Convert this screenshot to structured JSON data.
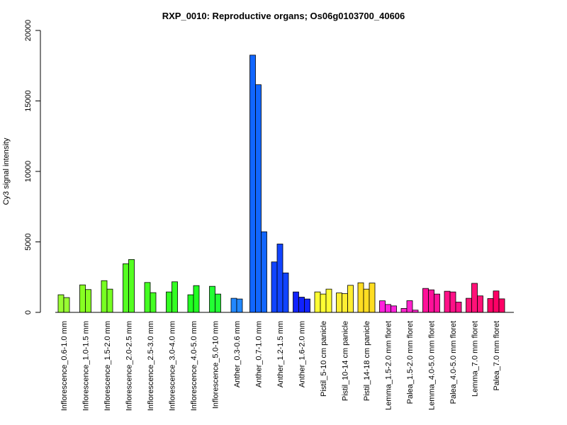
{
  "chart_data": {
    "type": "bar",
    "title": "RXP_0010: Reproductive organs; Os06g0103700_40606",
    "xlabel": "",
    "ylabel": "Cy3 signal intensity",
    "ylim": [
      0,
      20000
    ],
    "yticks": [
      0,
      5000,
      10000,
      15000,
      20000
    ],
    "grid": false,
    "groups": [
      {
        "label": "Inflorescence_0.6-1.0 mm",
        "color": "#99FF33",
        "values": [
          1250,
          1050
        ]
      },
      {
        "label": "Inflorescence_1.0-1.5 mm",
        "color": "#88FF22",
        "values": [
          1950,
          1620
        ]
      },
      {
        "label": "Inflorescence_1.5-2.0 mm",
        "color": "#77FF22",
        "values": [
          2250,
          1650
        ]
      },
      {
        "label": "Inflorescence_2.0-2.5 mm",
        "color": "#55FF22",
        "values": [
          3450,
          3750
        ]
      },
      {
        "label": "Inflorescence_2.5-3.0 mm",
        "color": "#44FF22",
        "values": [
          2120,
          1400
        ]
      },
      {
        "label": "Inflorescence_3.0-4.0 mm",
        "color": "#33FF22",
        "values": [
          1450,
          2170
        ]
      },
      {
        "label": "Inflorescence_4.0-5.0 mm",
        "color": "#22FF22",
        "values": [
          1250,
          1900
        ]
      },
      {
        "label": "Inflorescence_5.0-10 mm",
        "color": "#22FF33",
        "values": [
          1850,
          1300
        ]
      },
      {
        "label": "Anther_0.3-0.6 mm",
        "color": "#2288FF",
        "values": [
          1000,
          950
        ]
      },
      {
        "label": "Anther_0.7-1.0 mm",
        "color": "#1166FF",
        "values": [
          18250,
          16150,
          5720
        ]
      },
      {
        "label": "Anther_1.2-1.5 mm",
        "color": "#1144FF",
        "values": [
          3580,
          4850,
          2800
        ]
      },
      {
        "label": "Anther_1.6-2.0 mm",
        "color": "#1122FF",
        "values": [
          1450,
          1080,
          950
        ]
      },
      {
        "label": "Pistil_5-10 cm panicle",
        "color": "#FFFF33",
        "values": [
          1450,
          1300,
          1650
        ]
      },
      {
        "label": "Pistil_10-14 cm panicle",
        "color": "#FFEE33",
        "values": [
          1380,
          1330,
          1920
        ]
      },
      {
        "label": "Pistil_14-18 cm panicle",
        "color": "#FFDD22",
        "values": [
          2100,
          1650,
          2080
        ]
      },
      {
        "label": "Lemma_1.5-2.0 mm floret",
        "color": "#FF22DD",
        "values": [
          820,
          560,
          460
        ]
      },
      {
        "label": "Palea_1.5-2.0 mm floret",
        "color": "#FF22CC",
        "values": [
          280,
          830,
          160
        ]
      },
      {
        "label": "Lemma_4.0-5.0 mm floret",
        "color": "#FF1199",
        "values": [
          1700,
          1600,
          1300
        ]
      },
      {
        "label": "Palea_4.0-5.0 mm floret",
        "color": "#FF1188",
        "values": [
          1500,
          1450,
          730
        ]
      },
      {
        "label": "Lemma_7.0 mm floret",
        "color": "#FF1177",
        "values": [
          1000,
          2060,
          1170
        ]
      },
      {
        "label": "Palea_7.0 mm floret",
        "color": "#FF0066",
        "values": [
          980,
          1520,
          960
        ]
      }
    ]
  }
}
